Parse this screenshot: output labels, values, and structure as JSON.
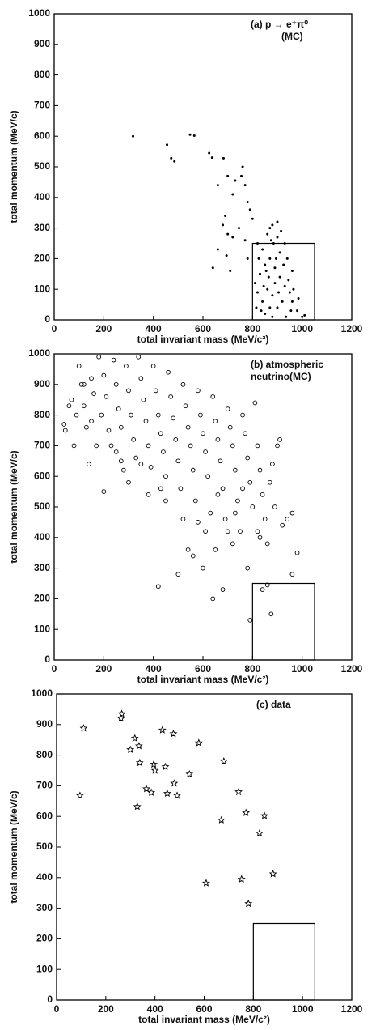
{
  "chart_data": [
    {
      "type": "scatter",
      "marker": "dot",
      "color": "#000000",
      "title": [
        "(a) p → e⁺π⁰",
        "(MC)"
      ],
      "x_label": "total invariant mass (MeV/c²)",
      "y_label": "total momentum (MeV/c)",
      "xlim": [
        0,
        1200
      ],
      "ylim": [
        0,
        1000
      ],
      "xticks": [
        0,
        200,
        400,
        600,
        800,
        1000,
        1200
      ],
      "yticks": [
        0,
        100,
        200,
        300,
        400,
        500,
        600,
        700,
        800,
        900,
        1000
      ],
      "signal_box": {
        "x": [
          800,
          1050
        ],
        "y": [
          0,
          250
        ]
      },
      "x": [
        318,
        455,
        472,
        485,
        548,
        565,
        625,
        637,
        683,
        660,
        700,
        730,
        760,
        755,
        720,
        770,
        780,
        790,
        800,
        690,
        680,
        640,
        660,
        695,
        710,
        720,
        745,
        770,
        700,
        780,
        820,
        840,
        860,
        880,
        900,
        870,
        850,
        830,
        810,
        890,
        910,
        930,
        950,
        960,
        980,
        1000,
        920,
        900,
        880,
        860,
        840,
        820,
        850,
        870,
        890,
        910,
        930,
        940,
        960,
        925,
        905,
        885,
        865,
        845,
        825,
        815,
        835,
        855,
        875,
        895,
        915,
        945,
        965,
        985,
        1010,
        955,
        935,
        880,
        900,
        870
      ],
      "y": [
        600,
        572,
        528,
        518,
        605,
        602,
        545,
        530,
        528,
        440,
        470,
        455,
        500,
        470,
        410,
        440,
        385,
        360,
        330,
        340,
        310,
        170,
        230,
        210,
        160,
        270,
        300,
        260,
        280,
        200,
        250,
        230,
        280,
        310,
        320,
        200,
        180,
        150,
        120,
        170,
        140,
        110,
        90,
        60,
        30,
        10,
        60,
        40,
        80,
        100,
        60,
        90,
        20,
        40,
        120,
        220,
        250,
        200,
        160,
        180,
        90,
        250,
        140,
        110,
        200,
        40,
        30,
        160,
        260,
        200,
        290,
        130,
        100,
        70,
        15,
        30,
        10,
        10,
        270,
        300
      ]
    },
    {
      "type": "scatter",
      "marker": "circle",
      "color": "#000000",
      "title": [
        "(b) atmospheric",
        "neutrino(MC)"
      ],
      "x_label": "total invariant mass (MeV/c²)",
      "y_label": "total momentum (MeV/c)",
      "xlim": [
        0,
        1200
      ],
      "ylim": [
        0,
        1000
      ],
      "xticks": [
        0,
        200,
        400,
        600,
        800,
        1000,
        1200
      ],
      "yticks": [
        0,
        100,
        200,
        300,
        400,
        500,
        600,
        700,
        800,
        900,
        1000
      ],
      "signal_box": {
        "x": [
          800,
          1050
        ],
        "y": [
          0,
          250
        ]
      },
      "x": [
        40,
        45,
        70,
        80,
        90,
        100,
        110,
        120,
        130,
        140,
        150,
        160,
        170,
        180,
        190,
        200,
        200,
        210,
        220,
        230,
        240,
        250,
        260,
        270,
        280,
        290,
        300,
        310,
        320,
        330,
        340,
        350,
        360,
        370,
        380,
        390,
        400,
        410,
        420,
        430,
        440,
        450,
        460,
        470,
        480,
        490,
        500,
        510,
        520,
        530,
        540,
        550,
        560,
        570,
        580,
        590,
        600,
        610,
        620,
        630,
        640,
        650,
        660,
        670,
        680,
        690,
        700,
        710,
        720,
        730,
        740,
        750,
        760,
        770,
        780,
        790,
        800,
        810,
        820,
        830,
        840,
        850,
        860,
        870,
        880,
        890,
        900,
        910,
        920,
        940,
        960,
        980,
        960,
        640,
        680,
        600,
        560,
        500,
        420,
        790,
        840,
        860,
        875,
        540,
        720,
        780,
        700,
        650,
        450,
        380,
        300,
        350,
        430,
        250,
        150,
        120,
        60,
        270,
        520,
        580,
        610,
        660,
        730,
        830,
        760,
        820
      ],
      "y": [
        770,
        750,
        850,
        700,
        800,
        960,
        900,
        830,
        760,
        640,
        920,
        870,
        700,
        990,
        800,
        550,
        930,
        860,
        750,
        700,
        980,
        900,
        820,
        760,
        620,
        960,
        880,
        800,
        720,
        660,
        990,
        920,
        850,
        780,
        700,
        630,
        960,
        880,
        800,
        740,
        680,
        600,
        940,
        860,
        790,
        720,
        650,
        560,
        900,
        830,
        760,
        700,
        620,
        520,
        880,
        800,
        740,
        680,
        600,
        480,
        860,
        780,
        720,
        650,
        560,
        460,
        820,
        760,
        700,
        620,
        520,
        420,
        800,
        740,
        660,
        580,
        500,
        840,
        700,
        620,
        540,
        460,
        380,
        580,
        640,
        500,
        700,
        720,
        440,
        460,
        480,
        350,
        280,
        200,
        230,
        300,
        340,
        280,
        240,
        130,
        230,
        245,
        150,
        360,
        380,
        300,
        420,
        360,
        520,
        540,
        580,
        640,
        560,
        680,
        780,
        900,
        830,
        650,
        460,
        450,
        420,
        540,
        480,
        400,
        560,
        420
      ]
    },
    {
      "type": "scatter",
      "marker": "star",
      "color": "#000000",
      "title": [
        "(c) data"
      ],
      "x_label": "total invariant mass (MeV/c²)",
      "y_label": "total momentum (MeV/c)",
      "xlim": [
        0,
        1200
      ],
      "ylim": [
        0,
        1000
      ],
      "xticks": [
        0,
        200,
        400,
        600,
        800,
        1000,
        1200
      ],
      "yticks": [
        0,
        100,
        200,
        300,
        400,
        500,
        600,
        700,
        800,
        900,
        1000
      ],
      "signal_box": {
        "x": [
          800,
          1050
        ],
        "y": [
          0,
          250
        ]
      },
      "x": [
        95,
        110,
        265,
        262,
        300,
        318,
        328,
        338,
        335,
        365,
        385,
        395,
        400,
        430,
        442,
        450,
        475,
        478,
        490,
        540,
        578,
        608,
        670,
        680,
        740,
        752,
        770,
        780,
        825,
        845,
        880
      ],
      "y": [
        668,
        888,
        935,
        920,
        818,
        855,
        632,
        775,
        830,
        690,
        678,
        770,
        750,
        882,
        762,
        675,
        870,
        708,
        668,
        738,
        840,
        382,
        588,
        780,
        680,
        395,
        612,
        315,
        545,
        602,
        412
      ]
    }
  ]
}
